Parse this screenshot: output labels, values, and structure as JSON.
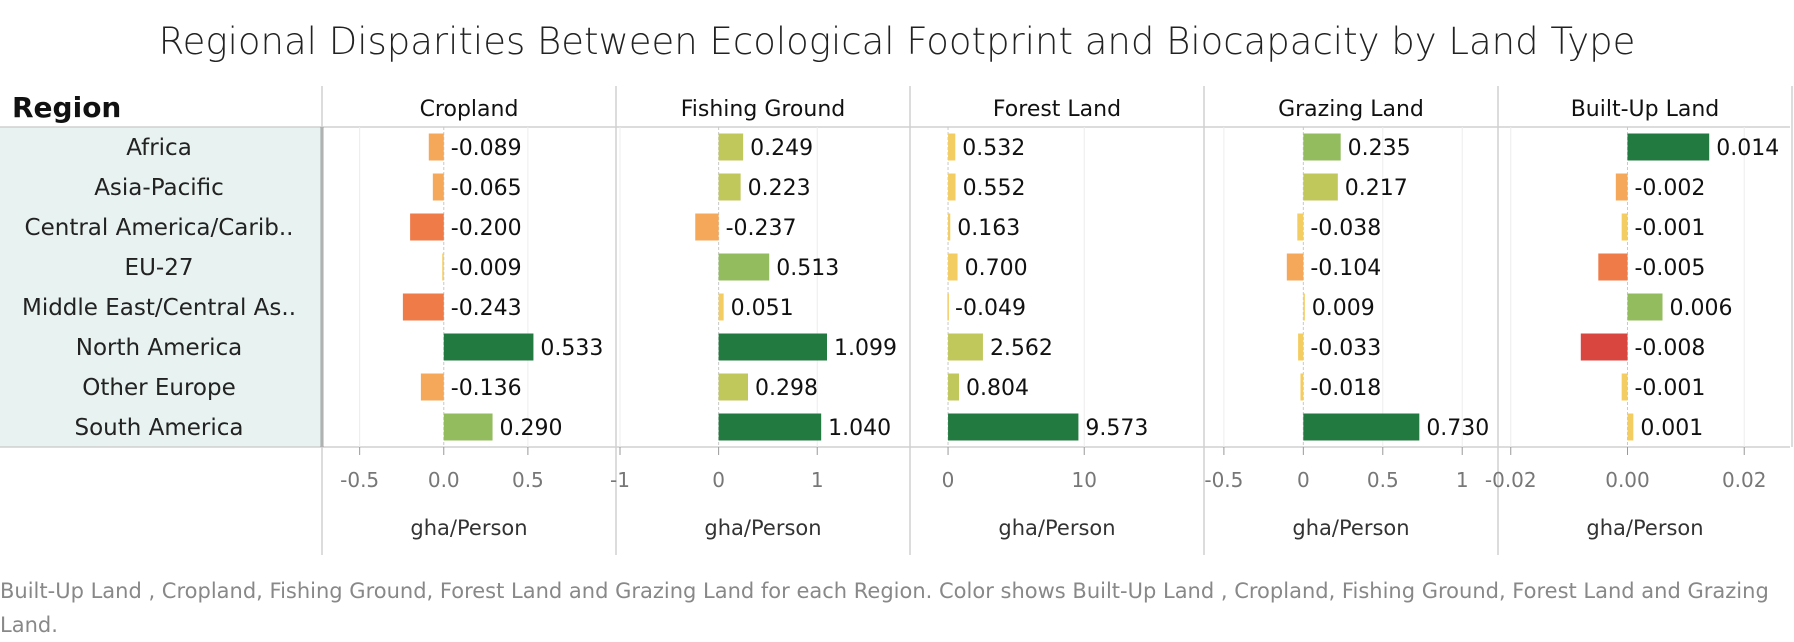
{
  "chart_data": {
    "type": "bar",
    "title": "Regional Disparities Between Ecological Footprint and Biocapacity by Land Type",
    "row_header": "Region",
    "categories": [
      "Africa",
      "Asia-Pacific",
      "Central America/Carib..",
      "EU-27",
      "Middle East/Central As..",
      "North America",
      "Other Europe",
      "South America"
    ],
    "series": [
      {
        "name": "Cropland",
        "values": [
          -0.089,
          -0.065,
          -0.2,
          -0.009,
          -0.243,
          0.533,
          -0.136,
          0.29
        ],
        "value_labels": [
          "-0.089",
          "-0.065",
          "-0.200",
          "-0.009",
          "-0.243",
          "0.533",
          "-0.136",
          "0.290"
        ],
        "xlim": [
          -0.7,
          1.0
        ],
        "ticks": [
          -0.5,
          0.0,
          0.5
        ],
        "tick_labels": [
          "-0.5",
          "0.0",
          "0.5"
        ],
        "xlabel": "gha/Person"
      },
      {
        "name": "Fishing Ground",
        "values": [
          0.249,
          0.223,
          -0.237,
          0.513,
          0.051,
          1.099,
          0.298,
          1.04
        ],
        "value_labels": [
          "0.249",
          "0.223",
          "-0.237",
          "0.513",
          "0.051",
          "1.099",
          "0.298",
          "1.040"
        ],
        "xlim": [
          -1.0,
          1.9
        ],
        "ticks": [
          -1,
          0,
          1
        ],
        "tick_labels": [
          "-1",
          "0",
          "1"
        ],
        "xlabel": "gha/Person"
      },
      {
        "name": "Forest Land",
        "values": [
          0.532,
          0.552,
          0.163,
          0.7,
          -0.049,
          2.562,
          0.804,
          9.573
        ],
        "value_labels": [
          "0.532",
          "0.552",
          "0.163",
          "0.700",
          "-0.049",
          "2.562",
          "0.804",
          "9.573"
        ],
        "xlim": [
          -2.5,
          18.5
        ],
        "ticks": [
          0,
          10
        ],
        "tick_labels": [
          "0",
          "10"
        ],
        "xlabel": "gha/Person"
      },
      {
        "name": "Grazing Land",
        "values": [
          0.235,
          0.217,
          -0.038,
          -0.104,
          0.009,
          -0.033,
          -0.018,
          0.73
        ],
        "value_labels": [
          "0.235",
          "0.217",
          "-0.038",
          "-0.104",
          "0.009",
          "-0.033",
          "-0.018",
          "0.730"
        ],
        "xlim": [
          -0.6,
          1.2
        ],
        "ticks": [
          -0.5,
          0,
          0.5,
          1
        ],
        "tick_labels": [
          "-0.5",
          "0",
          "0.5",
          "1"
        ],
        "xlabel": "gha/Person"
      },
      {
        "name": "Built-Up Land",
        "values": [
          0.014,
          -0.002,
          -0.001,
          -0.005,
          0.006,
          -0.008,
          -0.001,
          0.001
        ],
        "value_labels": [
          "0.014",
          "-0.002",
          "-0.001",
          "-0.005",
          "0.006",
          "-0.008",
          "-0.001",
          "0.001"
        ],
        "xlim": [
          -0.0215,
          0.0275
        ],
        "ticks": [
          -0.02,
          0.0,
          0.02
        ],
        "tick_labels": [
          "-0.02",
          "0.00",
          "0.02"
        ],
        "xlabel": "gha/Person"
      }
    ],
    "color_scale": "diverging red-yellow-green by value",
    "grid": true,
    "caption": "Built-Up Land , Cropland, Fishing Ground, Forest Land and Grazing Land for each Region.  Color shows Built-Up Land , Cropland, Fishing Ground, Forest Land and Grazing Land."
  },
  "colors": {
    "row_header_bg": "#e8f2f1",
    "grid": "#ececec",
    "divider": "#d0d0d0",
    "zero_line": "#c9c9c9",
    "neg_strong": "#c0293b",
    "neg_mid": "#d9463f",
    "neg_light": "#ef7b49",
    "neg_faint": "#f6a85a",
    "neutral": "#f4cd62",
    "pos_faint": "#c0c75b",
    "pos_light": "#93bc5e",
    "pos_mid": "#6aae63",
    "pos_strong": "#3d9456",
    "pos_deep": "#237a40"
  }
}
